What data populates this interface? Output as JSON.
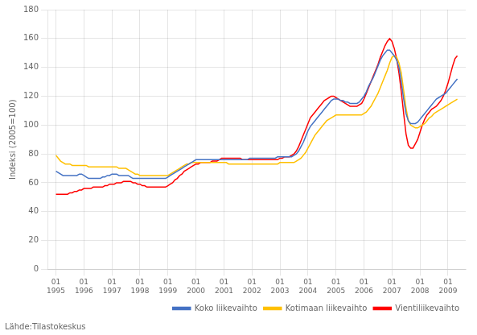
{
  "chart_data": {
    "type": "line",
    "ylabel": "Indeksi (2005=100)",
    "annotations": [
      "Lähde:Tilastokeskus"
    ],
    "legend": "lower right",
    "grid": true,
    "xlim": [
      1994.7,
      2009.6333333333332
    ],
    "xticks": [
      {
        "value": 1995,
        "label": "01\n1995"
      },
      {
        "value": 1996,
        "label": "01\n1996"
      },
      {
        "value": 1997,
        "label": "01\n1997"
      },
      {
        "value": 1998,
        "label": "01\n1998"
      },
      {
        "value": 1999,
        "label": "01\n1999"
      },
      {
        "value": 2000,
        "label": "01\n2000"
      },
      {
        "value": 2001,
        "label": "01\n2001"
      },
      {
        "value": 2002,
        "label": "01\n2002"
      },
      {
        "value": 2003,
        "label": "01\n2003"
      },
      {
        "value": 2004,
        "label": "01\n2004"
      },
      {
        "value": 2005,
        "label": "01\n2005"
      },
      {
        "value": 2006,
        "label": "01\n2006"
      },
      {
        "value": 2007,
        "label": "01\n2007"
      },
      {
        "value": 2008,
        "label": "01\n2008"
      },
      {
        "value": 2009,
        "label": "01\n2009"
      }
    ],
    "ylim": [
      0,
      180
    ],
    "yticks": [
      0,
      20,
      40,
      60,
      80,
      100,
      120,
      140,
      160,
      180
    ],
    "x": [
      1995,
      1995.0833333333333,
      1995.1666666666667,
      1995.25,
      1995.3333333333333,
      1995.4166666666667,
      1995.5,
      1995.5833333333333,
      1995.6666666666667,
      1995.75,
      1995.8333333333333,
      1995.9166666666667,
      1996,
      1996.0833333333333,
      1996.1666666666667,
      1996.25,
      1996.3333333333333,
      1996.4166666666667,
      1996.5,
      1996.5833333333333,
      1996.6666666666667,
      1996.75,
      1996.8333333333333,
      1996.9166666666667,
      1997,
      1997.0833333333333,
      1997.1666666666667,
      1997.25,
      1997.3333333333333,
      1997.4166666666667,
      1997.5,
      1997.5833333333333,
      1997.6666666666667,
      1997.75,
      1997.8333333333333,
      1997.9166666666667,
      1998,
      1998.0833333333333,
      1998.1666666666667,
      1998.25,
      1998.3333333333333,
      1998.4166666666667,
      1998.5,
      1998.5833333333333,
      1998.6666666666667,
      1998.75,
      1998.8333333333333,
      1998.9166666666667,
      1999,
      1999.0833333333333,
      1999.1666666666667,
      1999.25,
      1999.3333333333333,
      1999.4166666666667,
      1999.5,
      1999.5833333333333,
      1999.6666666666667,
      1999.75,
      1999.8333333333333,
      1999.9166666666667,
      2000,
      2000.0833333333333,
      2000.1666666666667,
      2000.25,
      2000.3333333333333,
      2000.4166666666667,
      2000.5,
      2000.5833333333333,
      2000.6666666666667,
      2000.75,
      2000.8333333333333,
      2000.9166666666667,
      2001,
      2001.0833333333333,
      2001.1666666666667,
      2001.25,
      2001.3333333333333,
      2001.4166666666667,
      2001.5,
      2001.5833333333333,
      2001.6666666666667,
      2001.75,
      2001.8333333333333,
      2001.9166666666667,
      2002,
      2002.0833333333333,
      2002.1666666666667,
      2002.25,
      2002.3333333333333,
      2002.4166666666667,
      2002.5,
      2002.5833333333333,
      2002.6666666666667,
      2002.75,
      2002.8333333333333,
      2002.9166666666667,
      2003,
      2003.0833333333333,
      2003.1666666666667,
      2003.25,
      2003.3333333333333,
      2003.4166666666667,
      2003.5,
      2003.5833333333333,
      2003.6666666666667,
      2003.75,
      2003.8333333333333,
      2003.9166666666667,
      2004,
      2004.0833333333333,
      2004.1666666666667,
      2004.25,
      2004.3333333333333,
      2004.4166666666667,
      2004.5,
      2004.5833333333333,
      2004.6666666666667,
      2004.75,
      2004.8333333333333,
      2004.9166666666667,
      2005,
      2005.0833333333333,
      2005.1666666666667,
      2005.25,
      2005.3333333333333,
      2005.4166666666667,
      2005.5,
      2005.5833333333333,
      2005.6666666666667,
      2005.75,
      2005.8333333333333,
      2005.9166666666667,
      2006,
      2006.0833333333333,
      2006.1666666666667,
      2006.25,
      2006.3333333333333,
      2006.4166666666667,
      2006.5,
      2006.5833333333333,
      2006.6666666666667,
      2006.75,
      2006.8333333333333,
      2006.9166666666667,
      2007,
      2007.0833333333333,
      2007.1666666666667,
      2007.25,
      2007.3333333333333,
      2007.4166666666667,
      2007.5,
      2007.5833333333333,
      2007.6666666666667,
      2007.75,
      2007.8333333333333,
      2007.9166666666667,
      2008,
      2008.0833333333333,
      2008.1666666666667,
      2008.25,
      2008.3333333333333,
      2008.4166666666667,
      2008.5,
      2008.5833333333333,
      2008.6666666666667,
      2008.75,
      2008.8333333333333,
      2008.9166666666667,
      2009,
      2009.0833333333333,
      2009.1666666666667,
      2009.25,
      2009.3333333333333
    ],
    "series": [
      {
        "name": "Koko liikevaihto",
        "color": "#4472C4",
        "values": [
          68,
          67,
          66,
          65,
          65,
          65,
          65,
          65,
          65,
          65,
          66,
          66,
          65,
          64,
          63,
          63,
          63,
          63,
          63,
          63,
          64,
          64,
          65,
          65,
          66,
          66,
          66,
          65,
          65,
          65,
          65,
          65,
          64,
          63,
          63,
          63,
          63,
          63,
          63,
          63,
          63,
          63,
          63,
          63,
          63,
          63,
          63,
          63,
          64,
          65,
          66,
          67,
          68,
          69,
          70,
          71,
          72,
          73,
          74,
          75,
          76,
          76,
          76,
          76,
          76,
          76,
          76,
          76,
          76,
          76,
          76,
          76,
          76,
          76,
          76,
          76,
          76,
          76,
          76,
          76,
          76,
          76,
          76,
          77,
          77,
          77,
          77,
          77,
          77,
          77,
          77,
          77,
          77,
          77,
          77,
          78,
          78,
          78,
          78,
          78,
          78,
          78,
          79,
          80,
          82,
          85,
          88,
          92,
          96,
          99,
          101,
          103,
          105,
          107,
          109,
          111,
          113,
          115,
          117,
          118,
          118,
          118,
          117,
          117,
          116,
          116,
          115,
          115,
          115,
          115,
          116,
          118,
          120,
          123,
          127,
          130,
          133,
          137,
          141,
          145,
          148,
          150,
          152,
          152,
          150,
          148,
          145,
          140,
          130,
          118,
          108,
          103,
          101,
          101,
          101,
          102,
          104,
          106,
          108,
          110,
          112,
          114,
          116,
          118,
          119,
          120,
          121,
          122,
          124,
          126,
          128,
          130,
          132
        ]
      },
      {
        "name": "Kotimaan liikevaihto",
        "color": "#FFC000",
        "values": [
          79,
          77,
          75,
          74,
          73,
          73,
          73,
          72,
          72,
          72,
          72,
          72,
          72,
          72,
          71,
          71,
          71,
          71,
          71,
          71,
          71,
          71,
          71,
          71,
          71,
          71,
          71,
          70,
          70,
          70,
          70,
          69,
          68,
          67,
          66,
          66,
          65,
          65,
          65,
          65,
          65,
          65,
          65,
          65,
          65,
          65,
          65,
          65,
          65,
          66,
          67,
          68,
          69,
          70,
          71,
          72,
          73,
          73,
          74,
          74,
          74,
          74,
          74,
          74,
          74,
          74,
          74,
          74,
          74,
          74,
          74,
          74,
          74,
          74,
          73,
          73,
          73,
          73,
          73,
          73,
          73,
          73,
          73,
          73,
          73,
          73,
          73,
          73,
          73,
          73,
          73,
          73,
          73,
          73,
          73,
          73,
          74,
          74,
          74,
          74,
          74,
          74,
          74,
          75,
          76,
          77,
          79,
          81,
          84,
          87,
          90,
          93,
          95,
          97,
          99,
          101,
          103,
          104,
          105,
          106,
          107,
          107,
          107,
          107,
          107,
          107,
          107,
          107,
          107,
          107,
          107,
          107,
          108,
          109,
          111,
          113,
          116,
          119,
          122,
          126,
          130,
          134,
          138,
          143,
          147,
          148,
          147,
          143,
          136,
          124,
          112,
          103,
          100,
          99,
          98,
          98,
          99,
          100,
          101,
          103,
          105,
          106,
          108,
          109,
          110,
          111,
          112,
          113,
          114,
          115,
          116,
          117,
          118
        ]
      },
      {
        "name": "Vientiliikevaihto",
        "color": "#FF0000",
        "values": [
          52,
          52,
          52,
          52,
          52,
          52,
          53,
          53,
          54,
          54,
          55,
          55,
          56,
          56,
          56,
          56,
          57,
          57,
          57,
          57,
          57,
          58,
          58,
          59,
          59,
          59,
          60,
          60,
          60,
          61,
          61,
          61,
          61,
          60,
          60,
          59,
          59,
          58,
          58,
          57,
          57,
          57,
          57,
          57,
          57,
          57,
          57,
          57,
          58,
          59,
          60,
          62,
          63,
          65,
          66,
          68,
          69,
          70,
          71,
          72,
          73,
          73,
          74,
          74,
          74,
          74,
          74,
          75,
          75,
          75,
          76,
          77,
          77,
          77,
          77,
          77,
          77,
          77,
          77,
          77,
          76,
          76,
          76,
          76,
          76,
          76,
          76,
          76,
          76,
          76,
          76,
          76,
          76,
          76,
          76,
          76,
          77,
          77,
          78,
          78,
          78,
          79,
          80,
          82,
          85,
          89,
          93,
          97,
          101,
          105,
          107,
          109,
          111,
          113,
          115,
          117,
          118,
          119,
          120,
          120,
          119,
          118,
          117,
          116,
          115,
          114,
          113,
          113,
          113,
          113,
          114,
          115,
          118,
          122,
          126,
          130,
          134,
          138,
          142,
          147,
          151,
          155,
          158,
          160,
          158,
          153,
          146,
          136,
          123,
          108,
          94,
          86,
          84,
          84,
          87,
          90,
          95,
          100,
          104,
          107,
          109,
          111,
          112,
          113,
          115,
          117,
          120,
          124,
          129,
          135,
          141,
          146,
          148
        ]
      }
    ]
  }
}
